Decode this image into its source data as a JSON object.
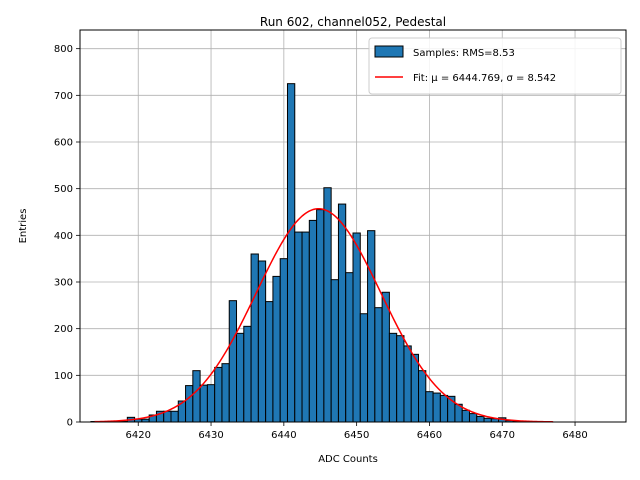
{
  "chart_data": {
    "type": "bar",
    "title": "Run 602, channel052, Pedestal",
    "xlabel": "ADC Counts",
    "ylabel": "Entries",
    "xlim": [
      6412,
      6487
    ],
    "ylim": [
      0,
      840
    ],
    "xticks": [
      6420,
      6430,
      6440,
      6450,
      6460,
      6470,
      6480
    ],
    "yticks": [
      0,
      100,
      200,
      300,
      400,
      500,
      600,
      700,
      800
    ],
    "grid": true,
    "legend_position": "top-right",
    "bin_width": 1,
    "histogram": {
      "name": "Samples: RMS=8.53",
      "color": "#1f77b4",
      "edge_color": "#000000",
      "bin_centers": [
        6414,
        6415,
        6416,
        6417,
        6418,
        6419,
        6420,
        6421,
        6422,
        6423,
        6424,
        6425,
        6426,
        6427,
        6428,
        6429,
        6430,
        6431,
        6432,
        6433,
        6434,
        6435,
        6436,
        6437,
        6438,
        6439,
        6440,
        6441,
        6442,
        6443,
        6444,
        6445,
        6446,
        6447,
        6448,
        6449,
        6450,
        6451,
        6452,
        6453,
        6454,
        6455,
        6456,
        6457,
        6458,
        6459,
        6460,
        6461,
        6462,
        6463,
        6464,
        6465,
        6466,
        6467,
        6468,
        6469,
        6470,
        6471,
        6472,
        6473,
        6474,
        6475,
        6476
      ],
      "counts": [
        1,
        0,
        0,
        1,
        1,
        10,
        6,
        6,
        15,
        23,
        23,
        23,
        45,
        78,
        110,
        79,
        80,
        117,
        125,
        260,
        190,
        205,
        360,
        345,
        258,
        312,
        350,
        725,
        407,
        407,
        432,
        455,
        502,
        305,
        467,
        320,
        405,
        232,
        410,
        245,
        278,
        190,
        185,
        163,
        145,
        110,
        65,
        62,
        57,
        55,
        38,
        25,
        18,
        12,
        8,
        7,
        9,
        3,
        2,
        1,
        1,
        0,
        1
      ]
    },
    "fit": {
      "name": "Fit: μ = 6444.769, σ = 8.542",
      "mu": 6444.769,
      "sigma": 8.542,
      "amplitude": 457,
      "x_range": [
        6414,
        6477
      ],
      "color": "#ff0000"
    }
  }
}
